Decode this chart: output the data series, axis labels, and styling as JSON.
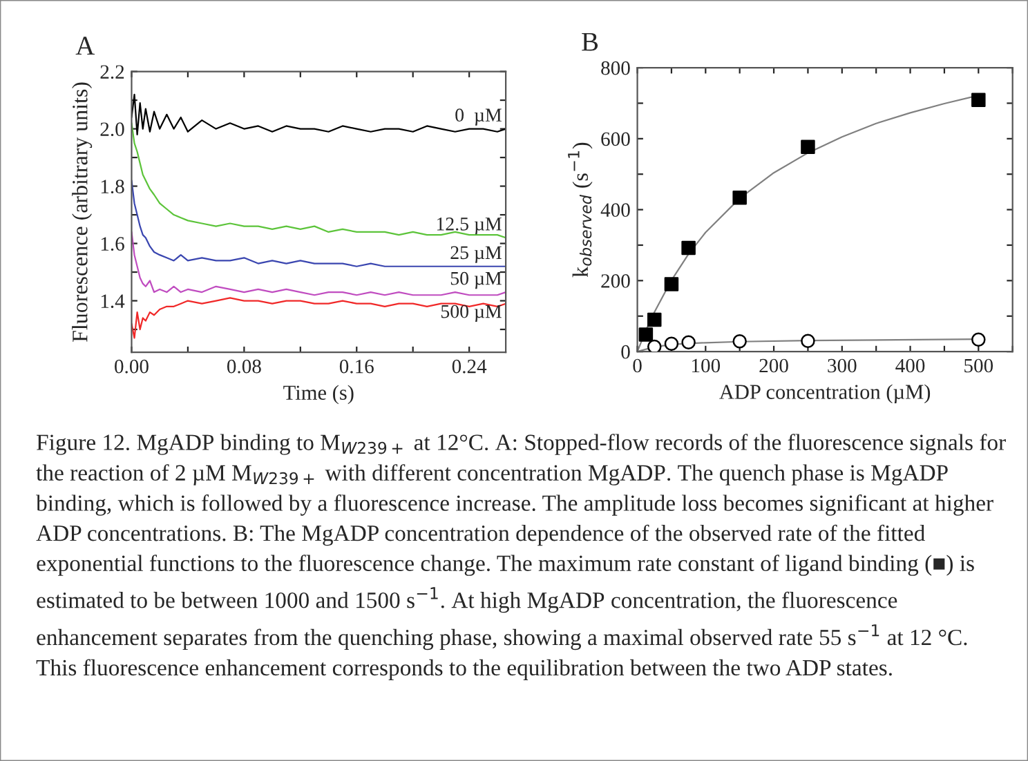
{
  "chart_data": [
    {
      "type": "line",
      "title": "A",
      "xlabel": "Time (s)",
      "ylabel": "Fluorescence (arbitrary units)",
      "x": [
        0,
        0.002,
        0.004,
        0.006,
        0.008,
        0.01,
        0.013,
        0.016,
        0.02,
        0.025,
        0.03,
        0.035,
        0.04,
        0.05,
        0.06,
        0.07,
        0.08,
        0.09,
        0.1,
        0.11,
        0.12,
        0.13,
        0.14,
        0.15,
        0.16,
        0.17,
        0.18,
        0.19,
        0.2,
        0.21,
        0.22,
        0.23,
        0.24,
        0.25,
        0.26,
        0.266
      ],
      "series": [
        {
          "name": "0  µM",
          "color": "#000000",
          "values": [
            2.04,
            2.12,
            1.98,
            2.09,
            2.0,
            2.07,
            1.99,
            2.06,
            2.0,
            2.05,
            2.0,
            2.04,
            1.99,
            2.03,
            2.0,
            2.02,
            2.0,
            2.01,
            1.99,
            2.01,
            2.0,
            2.0,
            1.99,
            2.01,
            2.0,
            1.99,
            2.0,
            2.0,
            1.99,
            2.01,
            2.0,
            1.99,
            2.0,
            2.0,
            1.99,
            2.0
          ]
        },
        {
          "name": "12.5 µM",
          "color": "#5cc43a",
          "values": [
            2.02,
            1.95,
            1.92,
            1.88,
            1.84,
            1.82,
            1.79,
            1.77,
            1.74,
            1.72,
            1.7,
            1.69,
            1.68,
            1.67,
            1.66,
            1.67,
            1.66,
            1.66,
            1.65,
            1.66,
            1.65,
            1.66,
            1.64,
            1.65,
            1.64,
            1.64,
            1.64,
            1.63,
            1.64,
            1.63,
            1.63,
            1.64,
            1.63,
            1.63,
            1.63,
            1.62
          ]
        },
        {
          "name": "25 µM",
          "color": "#3a46b0",
          "values": [
            1.82,
            1.74,
            1.7,
            1.66,
            1.63,
            1.62,
            1.59,
            1.57,
            1.56,
            1.55,
            1.54,
            1.56,
            1.54,
            1.55,
            1.54,
            1.54,
            1.55,
            1.53,
            1.54,
            1.53,
            1.54,
            1.53,
            1.53,
            1.53,
            1.52,
            1.53,
            1.52,
            1.52,
            1.52,
            1.52,
            1.52,
            1.52,
            1.52,
            1.52,
            1.52,
            1.52
          ]
        },
        {
          "name": "50 µM",
          "color": "#c04cc0",
          "values": [
            1.64,
            1.56,
            1.52,
            1.48,
            1.46,
            1.45,
            1.47,
            1.43,
            1.44,
            1.43,
            1.45,
            1.43,
            1.44,
            1.43,
            1.45,
            1.44,
            1.43,
            1.44,
            1.43,
            1.44,
            1.43,
            1.42,
            1.43,
            1.43,
            1.42,
            1.43,
            1.42,
            1.43,
            1.42,
            1.42,
            1.42,
            1.43,
            1.42,
            1.42,
            1.42,
            1.43
          ]
        },
        {
          "name": "500 µM",
          "color": "#f02828",
          "values": [
            1.32,
            1.27,
            1.36,
            1.3,
            1.34,
            1.33,
            1.36,
            1.35,
            1.37,
            1.38,
            1.38,
            1.39,
            1.4,
            1.39,
            1.4,
            1.41,
            1.4,
            1.4,
            1.39,
            1.4,
            1.4,
            1.39,
            1.39,
            1.4,
            1.39,
            1.39,
            1.38,
            1.39,
            1.39,
            1.38,
            1.39,
            1.39,
            1.38,
            1.39,
            1.38,
            1.39
          ]
        }
      ],
      "xlim": [
        0,
        0.266
      ],
      "ylim": [
        1.22,
        2.2
      ],
      "xticks": [
        {
          "value": 0,
          "label": "0.00"
        },
        {
          "value": 0.04,
          "label": null
        },
        {
          "value": 0.08,
          "label": "0.08"
        },
        {
          "value": 0.12,
          "label": null
        },
        {
          "value": 0.16,
          "label": "0.16"
        },
        {
          "value": 0.2,
          "label": null
        },
        {
          "value": 0.24,
          "label": "0.24"
        }
      ],
      "yticks": [
        {
          "value": 1.3,
          "label": null
        },
        1.4,
        {
          "value": 1.5,
          "label": null
        },
        1.6,
        {
          "value": 1.7,
          "label": null
        },
        1.8,
        {
          "value": 1.9,
          "label": null
        },
        {
          "value": 2.0,
          "label": "2.0"
        },
        {
          "value": 2.1,
          "label": null
        },
        2.2
      ],
      "marker": "none",
      "line_style": "solid",
      "grid": false,
      "legend": false,
      "annotations": [
        "Figure 12. MgADP binding to M$_{W239+}$ at 12°C. A: Stopped-flow records of the fluorescence signals for the reaction of 2 µM M$_{W239+}$ with different concentration MgADP. The quench phase is MgADP binding, which is followed by a fluorescence increase. The amplitude loss becomes significant at higher ADP concentrations. B: The MgADP concentration dependence of the observed rate of the fitted exponential functions to the fluorescence change. The maximum rate constant of ligand binding (■) is estimated to be between 1000 and 1500 s$^{−1}$. At high MgADP concentration, the fluorescence enhancement separates from the quenching phase, showing a maximal observed rate 55 s$^{−1}$ at 12 °C. This fluorescence enhancement corresponds to the equilibration between the two ADP states."
      ]
    },
    {
      "type": "scatter",
      "title": "B",
      "xlabel": "ADP concentration (µM)",
      "ylabel": "k$_{observed}$ (s$^{−1}$)",
      "series": [
        {
          "type": "line",
          "color": "#808080",
          "marker": "none",
          "x": [
            0,
            12.5,
            25,
            50,
            75,
            100,
            150,
            200,
            250,
            300,
            350,
            400,
            450,
            500
          ],
          "values": [
            0,
            60,
            111,
            201,
            275,
            336,
            432,
            504,
            560,
            605,
            643,
            673,
            699,
            722
          ]
        },
        {
          "type": "line",
          "color": "#808080",
          "marker": "none",
          "x": [
            0,
            25,
            50,
            75,
            100,
            150,
            250,
            500
          ],
          "values": [
            0,
            13,
            20,
            23,
            25,
            28,
            31,
            35
          ]
        },
        {
          "type": "scatter",
          "color": "#000000",
          "marker": "square",
          "x": [
            12.5,
            25,
            50,
            75,
            150,
            250,
            500
          ],
          "values": [
            48,
            90,
            190,
            292,
            434,
            577,
            709
          ]
        },
        {
          "type": "scatter",
          "color": "#000000",
          "marker": "circle",
          "x": [
            25,
            50,
            75,
            150,
            250,
            500
          ],
          "values": [
            14,
            22,
            26,
            29,
            30,
            34
          ]
        }
      ],
      "xlim": [
        0,
        550
      ],
      "ylim": [
        0,
        800
      ],
      "xticks": [
        0,
        {
          "value": 50,
          "label": null
        },
        100,
        {
          "value": 150,
          "label": null
        },
        200,
        {
          "value": 250,
          "label": null
        },
        300,
        {
          "value": 350,
          "label": null
        },
        400,
        {
          "value": 450,
          "label": null
        },
        500,
        {
          "value": 550,
          "label": null
        }
      ],
      "yticks": [
        0,
        {
          "value": 100,
          "label": null
        },
        200,
        {
          "value": 300,
          "label": null
        },
        400,
        {
          "value": 500,
          "label": null
        },
        600,
        {
          "value": 700,
          "label": null
        },
        800
      ],
      "grid": false,
      "legend": false
    }
  ]
}
